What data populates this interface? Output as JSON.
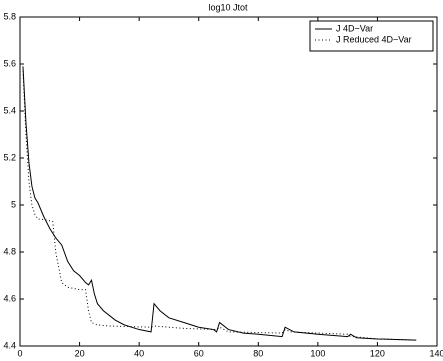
{
  "chart_data": {
    "type": "line",
    "title": "log10 Jtot",
    "xlim": [
      0,
      140
    ],
    "xticks": [
      0,
      20,
      40,
      60,
      80,
      100,
      120,
      140
    ],
    "ylim": [
      4.4,
      5.8
    ],
    "yticks": [
      4.4,
      4.6,
      4.8,
      5,
      5.2,
      5.4,
      5.6,
      5.8
    ],
    "legend": "upper right",
    "series": [
      {
        "name": "J 4D−Var",
        "color": "#000000",
        "dash": "solid",
        "x": [
          1,
          2,
          3,
          4,
          5,
          6,
          8,
          10,
          12,
          14,
          16,
          18,
          20,
          22,
          23,
          24,
          25,
          26,
          28,
          30,
          32,
          35,
          40,
          44,
          45,
          47,
          50,
          55,
          60,
          65,
          66,
          67,
          70,
          75,
          80,
          88,
          89,
          92,
          100,
          110,
          111,
          113,
          120,
          133
        ],
        "values": [
          5.59,
          5.35,
          5.18,
          5.08,
          5.03,
          5.01,
          4.95,
          4.9,
          4.86,
          4.83,
          4.76,
          4.72,
          4.7,
          4.67,
          4.66,
          4.68,
          4.62,
          4.58,
          4.55,
          4.53,
          4.51,
          4.49,
          4.47,
          4.46,
          4.58,
          4.55,
          4.52,
          4.5,
          4.48,
          4.47,
          4.46,
          4.5,
          4.47,
          4.455,
          4.45,
          4.44,
          4.48,
          4.46,
          4.45,
          4.44,
          4.45,
          4.435,
          4.43,
          4.425
        ]
      },
      {
        "name": "J Reduced 4D−Var",
        "color": "#000000",
        "dash": "dotted",
        "x": [
          1,
          2,
          3,
          4,
          5,
          6,
          7,
          11,
          12,
          14,
          16,
          20,
          22,
          23,
          24,
          26,
          30,
          44,
          45,
          55,
          66,
          67,
          70,
          88,
          89,
          91,
          110,
          111,
          112,
          120,
          133
        ],
        "values": [
          5.57,
          5.3,
          5.1,
          5.0,
          4.96,
          4.94,
          4.94,
          4.93,
          4.8,
          4.67,
          4.65,
          4.64,
          4.64,
          4.55,
          4.5,
          4.49,
          4.485,
          4.48,
          4.485,
          4.475,
          4.47,
          4.48,
          4.46,
          4.455,
          4.47,
          4.46,
          4.45,
          4.44,
          4.44,
          4.43,
          4.425
        ]
      }
    ]
  }
}
